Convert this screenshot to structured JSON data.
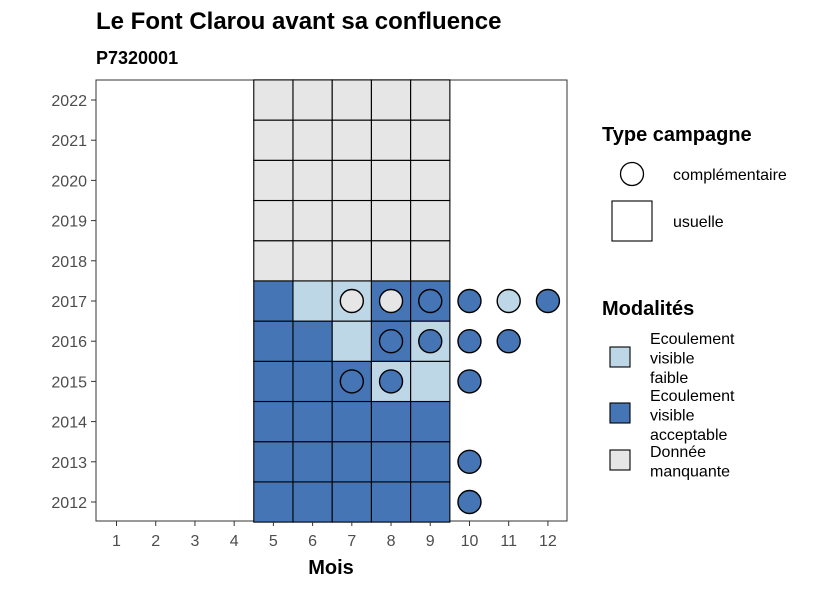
{
  "chart_data": {
    "type": "heatmap",
    "title": "Le Font Clarou avant sa confluence",
    "subtitle": "P7320001",
    "xlabel": "Mois",
    "ylabel": "",
    "x_ticks": [
      "1",
      "2",
      "3",
      "4",
      "5",
      "6",
      "7",
      "8",
      "9",
      "10",
      "11",
      "12"
    ],
    "y_ticks": [
      "2012",
      "2013",
      "2014",
      "2015",
      "2016",
      "2017",
      "2018",
      "2019",
      "2020",
      "2021",
      "2022"
    ],
    "x_range": [
      1,
      12
    ],
    "y_range": [
      2012,
      2022
    ],
    "grid": false,
    "colors": {
      "faible": "#bdd7e7",
      "acceptable": "#4575b4",
      "manquante": "#e6e6e6"
    },
    "legend_campagne": {
      "title": "Type campagne",
      "placement": "right",
      "items": [
        {
          "shape": "circle",
          "label": "complémentaire"
        },
        {
          "shape": "square",
          "label": "usuelle"
        }
      ]
    },
    "legend_modalites": {
      "title": "Modalités",
      "placement": "right",
      "items": [
        {
          "key": "faible",
          "lines": [
            "Ecoulement",
            "visible",
            "faible"
          ]
        },
        {
          "key": "acceptable",
          "lines": [
            "Ecoulement",
            "visible",
            "acceptable"
          ]
        },
        {
          "key": "manquante",
          "lines": [
            "Donnée",
            "manquante"
          ]
        }
      ]
    },
    "usuelle": [
      {
        "year": 2012,
        "months": [
          "acceptable",
          "acceptable",
          "acceptable",
          "acceptable",
          "acceptable"
        ]
      },
      {
        "year": 2013,
        "months": [
          "acceptable",
          "acceptable",
          "acceptable",
          "acceptable",
          "acceptable"
        ]
      },
      {
        "year": 2014,
        "months": [
          "acceptable",
          "acceptable",
          "acceptable",
          "acceptable",
          "acceptable"
        ]
      },
      {
        "year": 2015,
        "months": [
          "acceptable",
          "acceptable",
          "acceptable",
          "faible",
          "faible"
        ]
      },
      {
        "year": 2016,
        "months": [
          "acceptable",
          "acceptable",
          "faible",
          "acceptable",
          "faible"
        ]
      },
      {
        "year": 2017,
        "months": [
          "acceptable",
          "faible",
          "faible",
          "acceptable",
          "acceptable"
        ]
      },
      {
        "year": 2018,
        "months": [
          "manquante",
          "manquante",
          "manquante",
          "manquante",
          "manquante"
        ]
      },
      {
        "year": 2019,
        "months": [
          "manquante",
          "manquante",
          "manquante",
          "manquante",
          "manquante"
        ]
      },
      {
        "year": 2020,
        "months": [
          "manquante",
          "manquante",
          "manquante",
          "manquante",
          "manquante"
        ]
      },
      {
        "year": 2021,
        "months": [
          "manquante",
          "manquante",
          "manquante",
          "manquante",
          "manquante"
        ]
      },
      {
        "year": 2022,
        "months": [
          "manquante",
          "manquante",
          "manquante",
          "manquante",
          "manquante"
        ]
      }
    ],
    "usuelle_months": [
      5,
      6,
      7,
      8,
      9
    ],
    "complementaire": [
      {
        "year": 2012,
        "month": 10,
        "value": "acceptable"
      },
      {
        "year": 2013,
        "month": 10,
        "value": "acceptable"
      },
      {
        "year": 2015,
        "month": 7,
        "value": "acceptable"
      },
      {
        "year": 2015,
        "month": 8,
        "value": "acceptable"
      },
      {
        "year": 2015,
        "month": 10,
        "value": "acceptable"
      },
      {
        "year": 2016,
        "month": 8,
        "value": "acceptable"
      },
      {
        "year": 2016,
        "month": 9,
        "value": "acceptable"
      },
      {
        "year": 2016,
        "month": 10,
        "value": "acceptable"
      },
      {
        "year": 2016,
        "month": 11,
        "value": "acceptable"
      },
      {
        "year": 2017,
        "month": 7,
        "value": "manquante"
      },
      {
        "year": 2017,
        "month": 8,
        "value": "manquante"
      },
      {
        "year": 2017,
        "month": 9,
        "value": "acceptable"
      },
      {
        "year": 2017,
        "month": 10,
        "value": "acceptable"
      },
      {
        "year": 2017,
        "month": 11,
        "value": "faible"
      },
      {
        "year": 2017,
        "month": 12,
        "value": "acceptable"
      }
    ]
  }
}
